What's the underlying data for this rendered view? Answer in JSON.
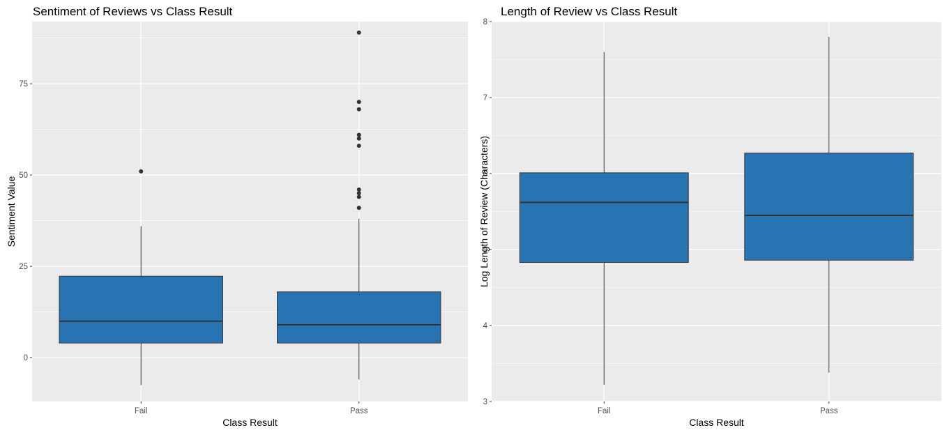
{
  "chart_data": [
    {
      "type": "boxplot",
      "title": "Sentiment of Reviews vs Class Result",
      "xlabel": "Class Result",
      "ylabel": "Sentiment Value",
      "categories": [
        "Fail",
        "Pass"
      ],
      "ylim": [
        -12,
        92
      ],
      "yticks": [
        0,
        25,
        50,
        75
      ],
      "grid": true,
      "box_color": "#2874b2",
      "panel_bg": "#ebebeb",
      "boxes": [
        {
          "category": "Fail",
          "whisker_low": -7.5,
          "q1": 4,
          "median": 10,
          "q3": 22.3,
          "whisker_high": 36,
          "outliers": [
            51
          ]
        },
        {
          "category": "Pass",
          "whisker_low": -6,
          "q1": 4,
          "median": 9,
          "q3": 18,
          "whisker_high": 38,
          "outliers": [
            41,
            44,
            45,
            46,
            58,
            60,
            61,
            68,
            70,
            89
          ]
        }
      ]
    },
    {
      "type": "boxplot",
      "title": "Length of Review vs Class Result",
      "xlabel": "Class Result",
      "ylabel": "Log Length of Review (Characters)",
      "categories": [
        "Fail",
        "Pass"
      ],
      "ylim": [
        3,
        8
      ],
      "yticks": [
        3,
        4,
        5,
        6,
        7,
        8
      ],
      "grid": true,
      "box_color": "#2874b2",
      "panel_bg": "#ebebeb",
      "boxes": [
        {
          "category": "Fail",
          "whisker_low": 3.22,
          "q1": 4.83,
          "median": 5.62,
          "q3": 6.01,
          "whisker_high": 7.6,
          "outliers": []
        },
        {
          "category": "Pass",
          "whisker_low": 3.38,
          "q1": 4.86,
          "median": 5.45,
          "q3": 6.27,
          "whisker_high": 7.8,
          "outliers": []
        }
      ]
    }
  ]
}
